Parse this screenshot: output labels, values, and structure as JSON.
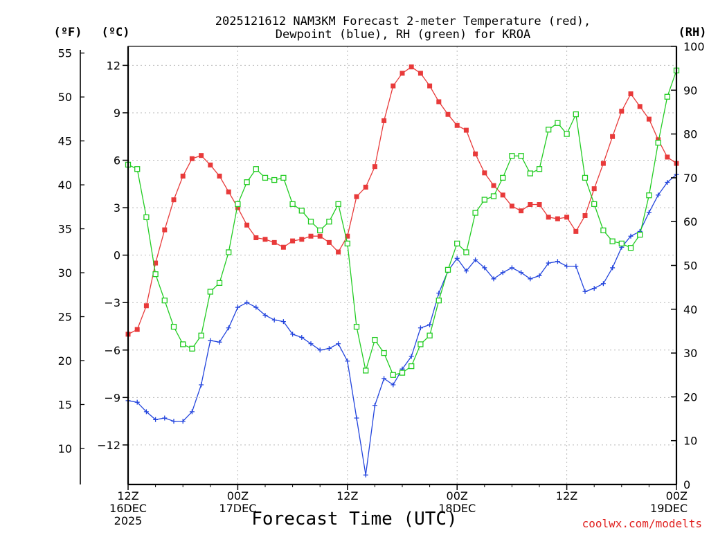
{
  "chart_data": {
    "type": "line",
    "title_lines": [
      "2025121612 NAM3KM Forecast 2-meter Temperature (red),",
      "Dewpoint (blue), RH (green) for KROA"
    ],
    "xlabel": "Forecast Time (UTC)",
    "credit": "coolwx.com/modelts",
    "units": {
      "fahrenheit": "(ºF)",
      "celsius": "(ºC)",
      "rh": "(RH)"
    },
    "x_range_hours": [
      0,
      60
    ],
    "x_ticks": [
      {
        "hour": 0,
        "lines": [
          "12Z",
          "16DEC",
          "2025"
        ]
      },
      {
        "hour": 12,
        "lines": [
          "00Z",
          "17DEC"
        ]
      },
      {
        "hour": 24,
        "lines": [
          "12Z"
        ]
      },
      {
        "hour": 36,
        "lines": [
          "00Z",
          "18DEC"
        ]
      },
      {
        "hour": 48,
        "lines": [
          "12Z"
        ]
      },
      {
        "hour": 60,
        "lines": [
          "00Z",
          "19DEC"
        ]
      }
    ],
    "celsius_axis": {
      "ylim": [
        -14.5,
        13.2
      ],
      "ticks": [
        12,
        9,
        6,
        3,
        0,
        -3,
        -6,
        -9,
        -12
      ]
    },
    "fahrenheit_axis": {
      "ylim": [
        5.9,
        55.76
      ],
      "ticks": [
        55,
        50,
        45,
        40,
        35,
        30,
        25,
        20,
        15,
        10
      ]
    },
    "rh_axis": {
      "ylim": [
        0,
        100
      ],
      "ticks": [
        100,
        90,
        80,
        70,
        60,
        50,
        40,
        30,
        20,
        10,
        0
      ]
    },
    "hours": [
      0,
      1,
      2,
      3,
      4,
      5,
      6,
      7,
      8,
      9,
      10,
      11,
      12,
      13,
      14,
      15,
      16,
      17,
      18,
      19,
      20,
      21,
      22,
      23,
      24,
      25,
      26,
      27,
      28,
      29,
      30,
      31,
      32,
      33,
      34,
      35,
      36,
      37,
      38,
      39,
      40,
      41,
      42,
      43,
      44,
      45,
      46,
      47,
      48,
      49,
      50,
      51,
      52,
      53,
      54,
      55,
      56,
      57,
      58,
      59,
      60
    ],
    "series": [
      {
        "name": "Temperature",
        "units": "C",
        "color": "#e83a3a",
        "marker": "filled-square",
        "values": [
          -5.0,
          -4.7,
          -3.2,
          -0.5,
          1.6,
          3.5,
          5.0,
          6.1,
          6.3,
          5.7,
          5.0,
          4.0,
          3.0,
          1.9,
          1.1,
          1.0,
          0.8,
          0.5,
          0.9,
          1.0,
          1.2,
          1.2,
          0.8,
          0.2,
          1.2,
          3.7,
          4.3,
          5.6,
          8.5,
          10.7,
          11.5,
          11.9,
          11.5,
          10.7,
          9.7,
          8.9,
          8.2,
          7.9,
          6.4,
          5.2,
          4.4,
          3.8,
          3.1,
          2.8,
          3.2,
          3.2,
          2.4,
          2.3,
          2.4,
          1.5,
          2.5,
          4.2,
          5.8,
          7.5,
          9.1,
          10.2,
          9.4,
          8.6,
          7.3,
          6.2,
          5.8
        ]
      },
      {
        "name": "Dewpoint",
        "units": "C",
        "color": "#2244dd",
        "marker": "plus",
        "values": [
          -9.2,
          -9.3,
          -9.9,
          -10.4,
          -10.3,
          -10.5,
          -10.5,
          -9.9,
          -8.2,
          -5.4,
          -5.5,
          -4.6,
          -3.3,
          -3.0,
          -3.3,
          -3.8,
          -4.1,
          -4.2,
          -5.0,
          -5.2,
          -5.6,
          -6.0,
          -5.9,
          -5.6,
          -6.7,
          -10.3,
          -13.9,
          -9.5,
          -7.8,
          -8.2,
          -7.2,
          -6.4,
          -4.6,
          -4.4,
          -2.4,
          -1.0,
          -0.2,
          -1.0,
          -0.3,
          -0.8,
          -1.5,
          -1.1,
          -0.8,
          -1.1,
          -1.5,
          -1.3,
          -0.5,
          -0.4,
          -0.7,
          -0.7,
          -2.3,
          -2.1,
          -1.8,
          -0.8,
          0.5,
          1.2,
          1.5,
          2.7,
          3.8,
          4.6,
          5.1
        ]
      },
      {
        "name": "Relative Humidity",
        "units": "%",
        "color": "#22cc22",
        "marker": "open-square",
        "values": [
          73,
          72,
          61,
          48,
          42,
          36,
          32,
          31,
          34,
          44,
          46,
          53,
          64,
          69,
          72,
          70,
          69.5,
          70,
          64,
          62.5,
          60,
          58,
          60,
          64,
          55,
          36,
          26,
          33,
          30,
          25,
          25.5,
          27,
          32,
          34,
          42,
          49,
          55,
          53,
          62,
          65,
          65.8,
          70,
          75,
          75,
          71,
          72,
          81,
          82.5,
          80,
          84.5,
          70,
          64,
          58,
          55.5,
          55,
          54,
          57,
          66,
          78,
          88.5,
          94.5
        ]
      }
    ]
  }
}
